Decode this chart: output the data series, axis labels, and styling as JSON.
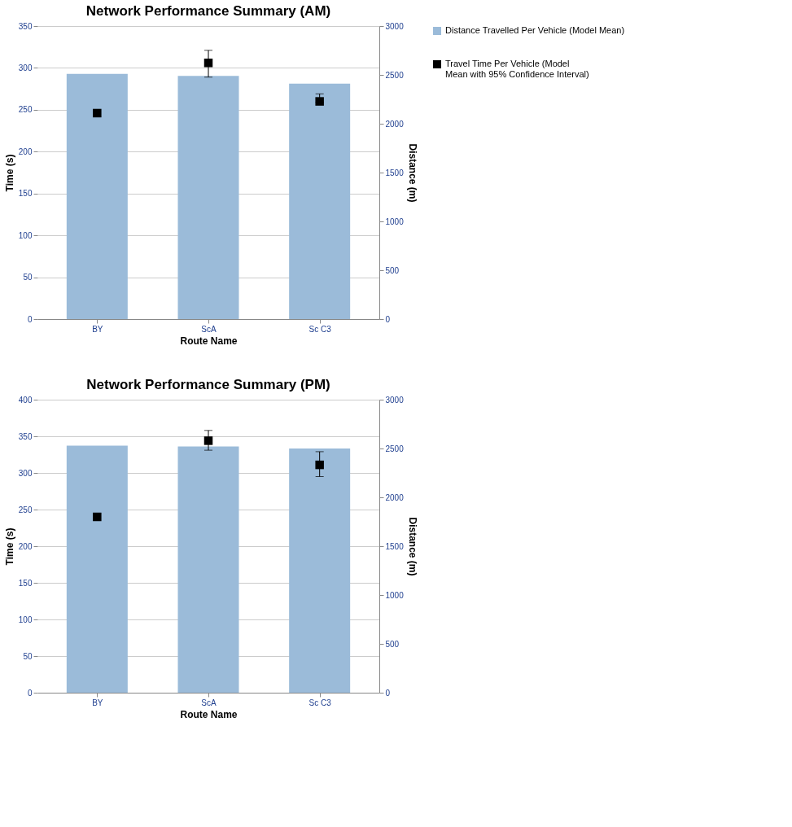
{
  "chart_data": [
    {
      "type": "bar",
      "title": "Network Performance Summary (AM)",
      "xlabel": "Route Name",
      "ylabel": "Time (s)",
      "y2label": "Distance (m)",
      "categories": [
        "BY",
        "ScA",
        "Sc C3"
      ],
      "ylim": [
        0,
        350
      ],
      "yticks": [
        0,
        50,
        100,
        150,
        200,
        250,
        300,
        350
      ],
      "y2lim": [
        0,
        3000
      ],
      "y2ticks": [
        0,
        500,
        1000,
        1500,
        2000,
        2500,
        3000
      ],
      "grid": "y",
      "legend": "right",
      "marker": "square",
      "series": [
        {
          "name": "Distance Travelled Per Vehicle (Model Mean)",
          "axis": "y2",
          "color": "#9bbbd9",
          "values": [
            2510,
            2490,
            2410
          ]
        },
        {
          "name": "Travel Time Per Vehicle (Model Mean with 95% Confidence Interval)",
          "type": "scatter",
          "color": "#000000",
          "values": [
            246,
            306,
            260
          ],
          "errors": [
            null,
            [
              289,
              321
            ],
            [
              259,
              269
            ]
          ]
        }
      ]
    },
    {
      "type": "bar",
      "title": "Network Performance Summary (PM)",
      "xlabel": "Route Name",
      "ylabel": "Time (s)",
      "y2label": "Distance (m)",
      "categories": [
        "BY",
        "ScA",
        "Sc C3"
      ],
      "ylim": [
        0,
        400
      ],
      "yticks": [
        0,
        50,
        100,
        150,
        200,
        250,
        300,
        350,
        400
      ],
      "y2lim": [
        0,
        3000
      ],
      "y2ticks": [
        0,
        500,
        1000,
        1500,
        2000,
        2500,
        3000
      ],
      "grid": "y",
      "legend": "right",
      "marker": "square",
      "series": [
        {
          "name": "Distance Travelled Per Vehicle (Model Mean)",
          "axis": "y2",
          "color": "#9bbbd9",
          "values": [
            2530,
            2520,
            2500
          ]
        },
        {
          "name": "Travel Time Per Vehicle (Model Mean with 95% Confidence Interval)",
          "type": "scatter",
          "color": "#000000",
          "values": [
            240,
            344,
            311
          ],
          "errors": [
            null,
            [
              331,
              358
            ],
            [
              295,
              329
            ]
          ]
        }
      ]
    }
  ]
}
